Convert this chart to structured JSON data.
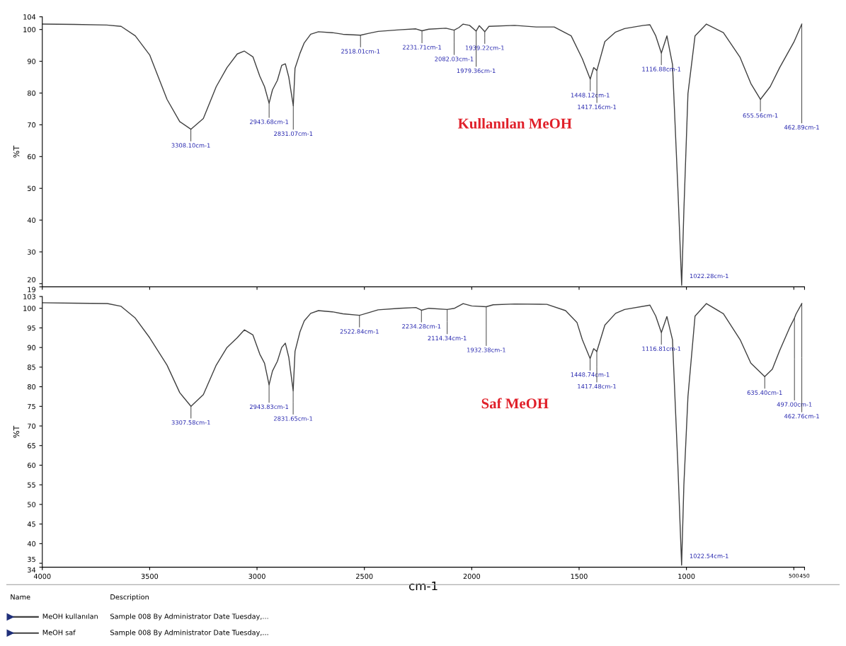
{
  "chart_data": [
    {
      "type": "line",
      "title": "Kullanılan MeOH",
      "ylabel": "%T",
      "legend_title": "Name",
      "tick_labels": "y",
      "grid": false,
      "marker": "none",
      "line_style": "solid",
      "xlim": [
        4000,
        450
      ],
      "xticks": [
        4000,
        3500,
        3000,
        2500,
        2000,
        1500,
        1000,
        500,
        450
      ],
      "ylim": [
        19,
        104
      ],
      "yticks": [
        19,
        20,
        30,
        40,
        50,
        60,
        70,
        80,
        90,
        100,
        104
      ],
      "series": [
        {
          "name": "MeOH kullanılan",
          "color": "#404040",
          "x": [
            4000,
            3850,
            3700,
            3633,
            3567,
            3500,
            3419,
            3360,
            3308.1,
            3250,
            3190,
            3140,
            3092,
            3059,
            3019,
            2987,
            2965,
            2943.68,
            2928,
            2905,
            2885,
            2868,
            2852,
            2831.07,
            2823,
            2800,
            2780,
            2750,
            2714,
            2649,
            2600,
            2518.01,
            2480,
            2436,
            2337,
            2260,
            2231.71,
            2200,
            2120,
            2082.03,
            2060,
            2040,
            2010,
            1979.36,
            1965,
            1939.22,
            1920,
            1800,
            1700,
            1616,
            1537,
            1485,
            1448.12,
            1432,
            1417.16,
            1380,
            1330,
            1288,
            1200,
            1170,
            1143,
            1116.88,
            1091,
            1065,
            1040,
            1022.28,
            1012,
            993,
            960,
            907,
            828,
            750,
            700,
            655.56,
            610,
            566,
            500,
            462.89
          ],
          "values": [
            101.7,
            101.6,
            101.4,
            101,
            98,
            92,
            78,
            71,
            68.6,
            72,
            82,
            88,
            92.3,
            93.2,
            91.4,
            85.3,
            82,
            76.8,
            81,
            84,
            88.7,
            89.2,
            85,
            76,
            87.8,
            92.5,
            95.8,
            98.5,
            99.3,
            99,
            98.5,
            98.2,
            98.8,
            99.4,
            99.9,
            100.2,
            99.6,
            100.1,
            100.4,
            99.8,
            100.6,
            101.7,
            101.3,
            99.5,
            101.2,
            99.3,
            101,
            101.3,
            100.8,
            100.8,
            98,
            90.8,
            84.4,
            88,
            87.1,
            96.2,
            99.2,
            100.3,
            101.3,
            101.5,
            98,
            92.6,
            98,
            89,
            50,
            19.5,
            43,
            79.8,
            98,
            101.7,
            99,
            91.2,
            83,
            78,
            82,
            88,
            96,
            101.7
          ]
        }
      ],
      "annotations": [
        {
          "text": "3308.10cm-1",
          "x": 3308.1,
          "y": 68.6
        },
        {
          "text": "2943.68cm-1",
          "x": 2943.68,
          "y": 76.8
        },
        {
          "text": "2831.07cm-1",
          "x": 2831.07,
          "y": 76
        },
        {
          "text": "2518.01cm-1",
          "x": 2518.01,
          "y": 98.2
        },
        {
          "text": "2231.71cm-1",
          "x": 2231.71,
          "y": 99.6
        },
        {
          "text": "2082.03cm-1",
          "x": 2082.03,
          "y": 99.8
        },
        {
          "text": "1979.36cm-1",
          "x": 1979.36,
          "y": 99.5
        },
        {
          "text": "1939.22cm-1",
          "x": 1939.22,
          "y": 99.3
        },
        {
          "text": "1448.12cm-1",
          "x": 1448.12,
          "y": 84.4
        },
        {
          "text": "1417.16cm-1",
          "x": 1417.16,
          "y": 87.1
        },
        {
          "text": "1116.88cm-1",
          "x": 1116.88,
          "y": 92.6
        },
        {
          "text": "1022.28cm-1",
          "x": 1022.28,
          "y": 19.5
        },
        {
          "text": "655.56cm-1",
          "x": 655.56,
          "y": 78
        },
        {
          "text": "462.89cm-1",
          "x": 462.89,
          "y": 101.7
        },
        "Sample 008 By Administrator Date Tuesday,..."
      ]
    },
    {
      "type": "line",
      "title": "Saf MeOH",
      "ylabel": "%T",
      "xlabel": "cm-1",
      "legend_title": "Description",
      "grid": false,
      "marker": "none",
      "line_style": "solid",
      "xlim": [
        4000,
        450
      ],
      "xticks": [
        4000,
        3500,
        3000,
        2500,
        2000,
        1500,
        1000,
        500,
        450
      ],
      "ylim": [
        34,
        103
      ],
      "yticks": [
        34,
        35,
        40,
        45,
        50,
        55,
        60,
        65,
        70,
        75,
        80,
        85,
        90,
        95,
        100,
        103
      ],
      "series": [
        {
          "name": "MeOH saf",
          "color": "#404040",
          "x": [
            4000,
            3850,
            3697,
            3633,
            3567,
            3500,
            3419,
            3360,
            3307.58,
            3250,
            3190,
            3140,
            3092,
            3059,
            3019,
            2987,
            2965,
            2943.83,
            2928,
            2905,
            2885,
            2868,
            2852,
            2831.65,
            2823,
            2800,
            2780,
            2750,
            2714,
            2649,
            2600,
            2522.84,
            2480,
            2436,
            2337,
            2260,
            2234.28,
            2200,
            2114.34,
            2080,
            2040,
            2000,
            1932.38,
            1900,
            1800,
            1650,
            1563,
            1510,
            1485,
            1448.74,
            1432,
            1417.48,
            1380,
            1330,
            1288,
            1170,
            1143,
            1116.81,
            1091,
            1065,
            1040,
            1022.54,
            1012,
            993,
            960,
            907,
            828,
            750,
            700,
            635.4,
            600,
            566,
            520,
            497.0,
            490,
            462.76
          ],
          "values": [
            101.4,
            101.3,
            101.2,
            100.5,
            97.5,
            92.5,
            85.5,
            78.5,
            75,
            78,
            85.5,
            90,
            92.5,
            94.5,
            93.2,
            88.3,
            86,
            80.5,
            84,
            86.5,
            90,
            91.1,
            87.5,
            79,
            89,
            94,
            96.8,
            98.7,
            99.4,
            99.1,
            98.6,
            98.2,
            98.9,
            99.6,
            100,
            100.2,
            99.5,
            100,
            99.7,
            100,
            101.2,
            100.6,
            100.4,
            100.9,
            101.1,
            101,
            99.4,
            96.4,
            92,
            87.2,
            89.7,
            89,
            95.7,
            98.7,
            99.7,
            100.8,
            98,
            93.8,
            97.9,
            92,
            60,
            34.5,
            55,
            77.5,
            98,
            101.2,
            98.6,
            92,
            86,
            82.6,
            84.5,
            89.2,
            95,
            97.5,
            98.5,
            101.2
          ]
        }
      ],
      "annotations": [
        {
          "text": "3307.58cm-1",
          "x": 3307.58,
          "y": 75
        },
        {
          "text": "2943.83cm-1",
          "x": 2943.83,
          "y": 80.5
        },
        {
          "text": "2831.65cm-1",
          "x": 2831.65,
          "y": 79
        },
        {
          "text": "2522.84cm-1",
          "x": 2522.84,
          "y": 98.2
        },
        {
          "text": "2234.28cm-1",
          "x": 2234.28,
          "y": 99.5
        },
        {
          "text": "2114.34cm-1",
          "x": 2114.34,
          "y": 99.7
        },
        {
          "text": "1932.38cm-1",
          "x": 1932.38,
          "y": 100.4
        },
        {
          "text": "1448.74cm-1",
          "x": 1448.74,
          "y": 87.2
        },
        {
          "text": "1417.48cm-1",
          "x": 1417.48,
          "y": 89
        },
        {
          "text": "1116.81cm-1",
          "x": 1116.81,
          "y": 93.8
        },
        {
          "text": "1022.54cm-1",
          "x": 1022.54,
          "y": 34.5
        },
        {
          "text": "635.40cm-1",
          "x": 635.4,
          "y": 82.6
        },
        {
          "text": "497.00cm-1",
          "x": 497.0,
          "y": 97.5
        },
        {
          "text": "462.76cm-1",
          "x": 462.76,
          "y": 101.2
        },
        "Sample 008 By Administrator Date Tuesday,..."
      ]
    }
  ]
}
